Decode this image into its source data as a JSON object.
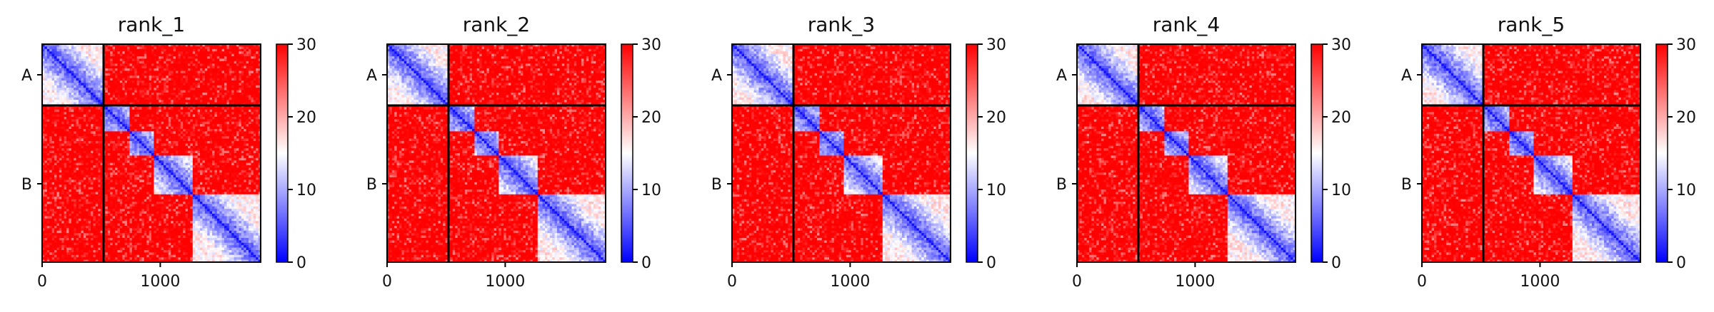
{
  "chart_data": {
    "type": "heatmap",
    "panels": [
      {
        "title": "rank_1",
        "variant": 0
      },
      {
        "title": "rank_2",
        "variant": 1
      },
      {
        "title": "rank_3",
        "variant": 2
      },
      {
        "title": "rank_4",
        "variant": 3
      },
      {
        "title": "rank_5",
        "variant": 4
      }
    ],
    "matrix_size": 1850,
    "chains": [
      {
        "label": "A",
        "start": 0,
        "end": 520
      },
      {
        "label": "B",
        "start": 520,
        "end": 1850
      }
    ],
    "domains": [
      {
        "start": 0,
        "end": 520
      },
      {
        "start": 520,
        "end": 730
      },
      {
        "start": 730,
        "end": 950
      },
      {
        "start": 950,
        "end": 1270
      },
      {
        "start": 1270,
        "end": 1850
      }
    ],
    "x_ticks": [
      {
        "value": 0,
        "label": "0"
      },
      {
        "value": 1000,
        "label": "1000"
      }
    ],
    "colorbar": {
      "min": 0,
      "max": 30,
      "ticks": [
        {
          "value": 0,
          "label": "0"
        },
        {
          "value": 10,
          "label": "10"
        },
        {
          "value": 20,
          "label": "20"
        },
        {
          "value": 30,
          "label": "30"
        }
      ],
      "colormap": "bwr",
      "low_color": "#0000ff",
      "mid_color": "#ffffff",
      "high_color": "#ff0000"
    },
    "grid": false
  }
}
